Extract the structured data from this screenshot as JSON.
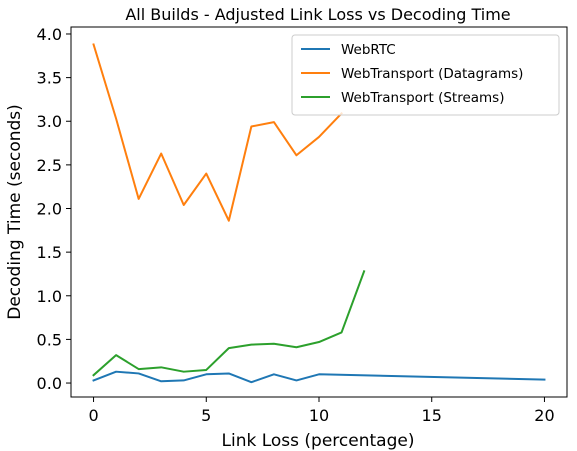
{
  "chart_data": {
    "type": "line",
    "title": "All Builds - Adjusted Link Loss vs Decoding Time",
    "xlabel": "Link Loss (percentage)",
    "ylabel": "Decoding Time (seconds)",
    "xlim": [
      -1,
      21
    ],
    "ylim": [
      -0.16,
      4.08
    ],
    "xticks": [
      0,
      5,
      10,
      15,
      20
    ],
    "xtick_labels": [
      "0",
      "5",
      "10",
      "15",
      "20"
    ],
    "yticks": [
      0.0,
      0.5,
      1.0,
      1.5,
      2.0,
      2.5,
      3.0,
      3.5,
      4.0
    ],
    "ytick_labels": [
      "0.0",
      "0.5",
      "1.0",
      "1.5",
      "2.0",
      "2.5",
      "3.0",
      "3.5",
      "4.0"
    ],
    "grid": false,
    "legend_position": "top-right",
    "series": [
      {
        "name": "WebRTC",
        "color": "#1f77b4",
        "x": [
          0,
          1,
          2,
          3,
          4,
          5,
          6,
          7,
          8,
          9,
          10,
          20
        ],
        "y": [
          0.03,
          0.13,
          0.11,
          0.02,
          0.03,
          0.1,
          0.11,
          0.01,
          0.1,
          0.03,
          0.1,
          0.04
        ]
      },
      {
        "name": "WebTransport (Datagrams)",
        "color": "#ff7f0e",
        "x": [
          0,
          1,
          2,
          3,
          4,
          5,
          6,
          7,
          8,
          9,
          10,
          11
        ],
        "y": [
          3.88,
          3.03,
          2.11,
          2.63,
          2.04,
          2.4,
          1.86,
          2.94,
          2.99,
          2.61,
          2.82,
          3.09
        ]
      },
      {
        "name": "WebTransport (Streams)",
        "color": "#2ca02c",
        "x": [
          0,
          1,
          2,
          3,
          4,
          5,
          6,
          7,
          8,
          9,
          10,
          11,
          12
        ],
        "y": [
          0.09,
          0.32,
          0.16,
          0.18,
          0.13,
          0.15,
          0.4,
          0.44,
          0.45,
          0.41,
          0.47,
          0.58,
          1.28
        ]
      }
    ]
  }
}
